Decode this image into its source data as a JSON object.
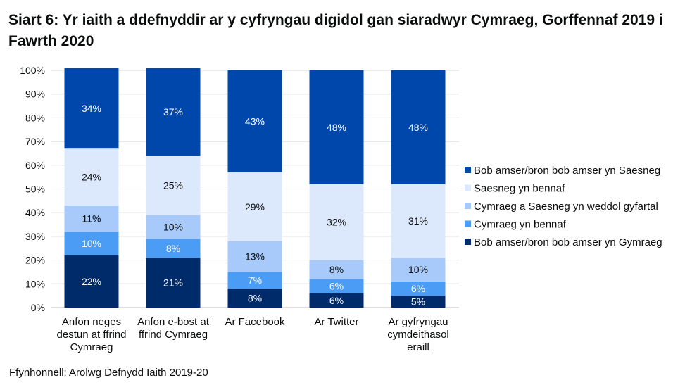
{
  "chart_data": {
    "type": "bar",
    "stacked": true,
    "title": "Siart 6: Yr iaith a ddefnyddir ar y cyfryngau digidol gan siaradwyr Cymraeg, Gorffennaf 2019 i Fawrth 2020",
    "source": "Ffynhonnell: Arolwg Defnydd Iaith 2019-20",
    "xlabel": "",
    "ylabel": "",
    "ylim": [
      0,
      100
    ],
    "yticks": [
      "0%",
      "10%",
      "20%",
      "30%",
      "40%",
      "50%",
      "60%",
      "70%",
      "80%",
      "90%",
      "100%"
    ],
    "grid": true,
    "legend_position": "right",
    "categories": [
      [
        "Anfon neges",
        "destun at ffrind",
        "Cymraeg"
      ],
      [
        "Anfon e-bost at",
        "ffrind Cymraeg"
      ],
      [
        "Ar Facebook"
      ],
      [
        "Ar Twitter"
      ],
      [
        "Ar gyfryngau",
        "cymdeithasol",
        "eraill"
      ]
    ],
    "series": [
      {
        "name": "Bob amser/bron bob amser yn Gymraeg",
        "color": "#002b6b",
        "label_color": "#ffffff",
        "values": [
          22,
          21,
          8,
          6,
          5
        ]
      },
      {
        "name": "Cymraeg yn bennaf",
        "color": "#4b9cf5",
        "label_color": "#ffffff",
        "values": [
          10,
          8,
          7,
          6,
          6
        ]
      },
      {
        "name": "Cymraeg a Saesneg yn weddol gyfartal",
        "color": "#a7cafa",
        "label_color": "#0b0c0c",
        "values": [
          11,
          10,
          13,
          8,
          10
        ]
      },
      {
        "name": "Saesneg yn bennaf",
        "color": "#dce9fc",
        "label_color": "#0b0c0c",
        "values": [
          24,
          25,
          29,
          32,
          31
        ]
      },
      {
        "name": "Bob amser/bron bob amser yn Saesneg",
        "color": "#0047ab",
        "label_color": "#ffffff",
        "values": [
          34,
          37,
          43,
          48,
          48
        ]
      }
    ]
  }
}
